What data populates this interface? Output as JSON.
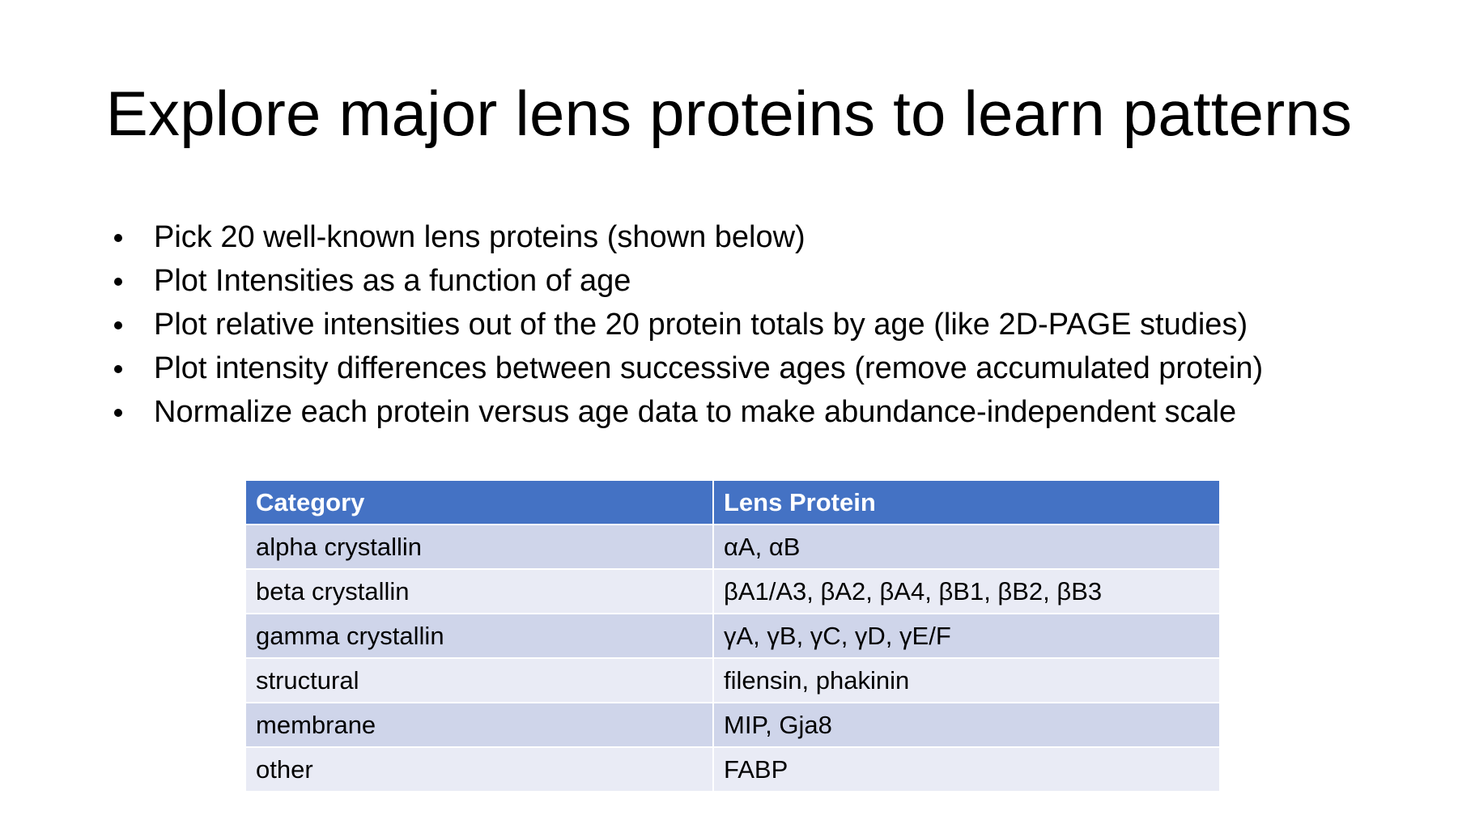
{
  "slide": {
    "title": "Explore major lens proteins to learn patterns"
  },
  "bullets": [
    "Pick 20 well-known lens proteins (shown below)",
    "Plot Intensities as a function of age",
    "Plot relative intensities out of the 20 protein totals by age (like 2D-PAGE studies)",
    "Plot intensity differences between successive ages (remove accumulated protein)",
    "Normalize each protein versus age data to make abundance-independent scale"
  ],
  "table": {
    "headers": [
      "Category",
      "Lens Protein"
    ],
    "header_color": "#4472c4",
    "rows": [
      [
        "alpha crystallin",
        "αA, αB"
      ],
      [
        "beta crystallin",
        "βA1/A3, βA2, βA4, βB1, βB2, βB3"
      ],
      [
        "gamma crystallin",
        "γA, γB, γC, γD, γE/F"
      ],
      [
        "structural",
        "filensin, phakinin"
      ],
      [
        "membrane",
        "MIP, Gja8"
      ],
      [
        "other",
        "FABP"
      ]
    ]
  }
}
